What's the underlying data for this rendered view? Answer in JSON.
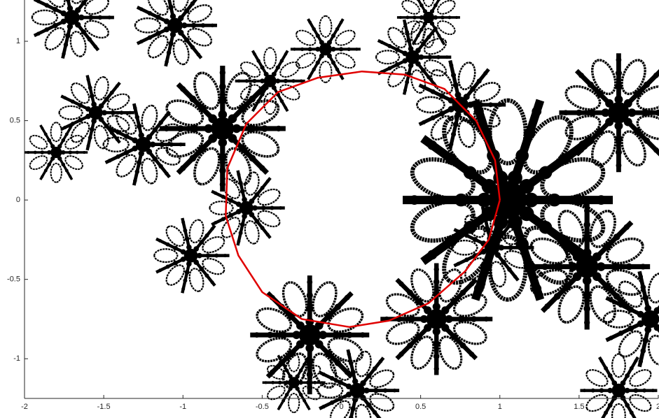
{
  "chart_data": {
    "type": "line",
    "x": [
      1.0,
      0.97,
      0.85,
      0.65,
      0.4,
      0.13,
      -0.15,
      -0.4,
      -0.6,
      -0.72,
      -0.73,
      -0.65,
      -0.5,
      -0.25,
      0.05,
      0.3,
      0.55,
      0.78,
      0.93,
      1.0
    ],
    "series": [
      {
        "color": "#e00000",
        "values": [
          0.0,
          0.25,
          0.5,
          0.7,
          0.79,
          0.81,
          0.77,
          0.68,
          0.48,
          0.2,
          -0.1,
          -0.35,
          -0.58,
          -0.75,
          -0.8,
          -0.76,
          -0.65,
          -0.45,
          -0.25,
          0.0
        ]
      }
    ],
    "xlim": [
      -2,
      2
    ],
    "xticks": [
      -2,
      -1.5,
      -1,
      -0.5,
      0,
      0.5,
      1,
      1.5,
      2
    ],
    "ylim": [
      -1.25,
      1.26
    ],
    "yticks": [
      -1,
      -0.5,
      0,
      0.5,
      1
    ]
  }
}
